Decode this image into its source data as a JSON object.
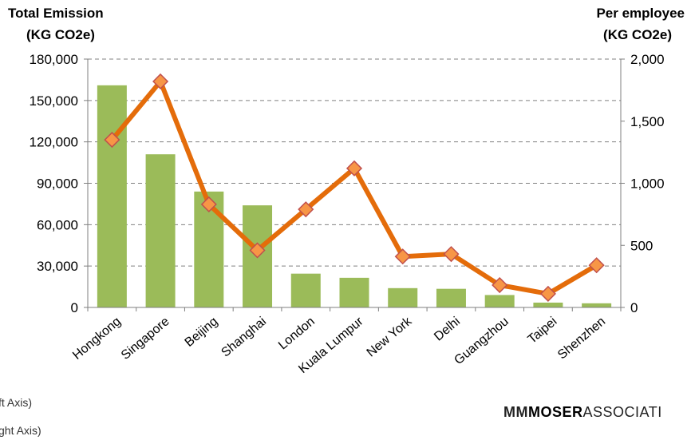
{
  "left_axis_title": "Total Emission",
  "left_axis_unit": "(KG CO2e)",
  "right_axis_title": "Per  employee",
  "right_axis_unit": "(KG CO2e)",
  "legend": {
    "left_series_fragment": "ft Axis)",
    "right_series_fragment": "ght Axis)"
  },
  "logo": {
    "part1": "MM",
    "part2": "MOSER",
    "part3": "ASSOCIATI"
  },
  "colors": {
    "bar": "#9bbb59",
    "line": "#e46c0a",
    "marker_fill": "#f79646",
    "marker_stroke": "#c0504d",
    "grid": "#808080"
  },
  "chart_data": {
    "type": "bar",
    "categories": [
      "Hongkong",
      "Singapore",
      "Beijing",
      "Shanghai",
      "London",
      "Kuala Lumpur",
      "New York",
      "Delhi",
      "Guangzhou",
      "Taipei",
      "Shenzhen"
    ],
    "series": [
      {
        "type": "bar",
        "axis": "left",
        "values": [
          161000,
          111000,
          84000,
          74000,
          24500,
          21500,
          14000,
          13500,
          9000,
          3500,
          3000
        ]
      },
      {
        "type": "line",
        "axis": "right",
        "marker": "diamond",
        "values": [
          1350,
          1820,
          830,
          460,
          790,
          1120,
          410,
          430,
          180,
          110,
          340
        ]
      }
    ],
    "y_left": {
      "ylim": [
        0,
        180000
      ],
      "ticks": [
        0,
        30000,
        60000,
        90000,
        120000,
        150000,
        180000
      ],
      "tick_labels": [
        "0",
        "30,000",
        "60,000",
        "90,000",
        "120,000",
        "150,000",
        "180,000"
      ]
    },
    "y_right": {
      "ylim": [
        0,
        2000
      ],
      "ticks": [
        0,
        500,
        1000,
        1500,
        2000
      ],
      "tick_labels": [
        "0",
        "500",
        "1,000",
        "1,500",
        "2,000"
      ]
    },
    "grid": true,
    "grid_style": "dashed"
  }
}
